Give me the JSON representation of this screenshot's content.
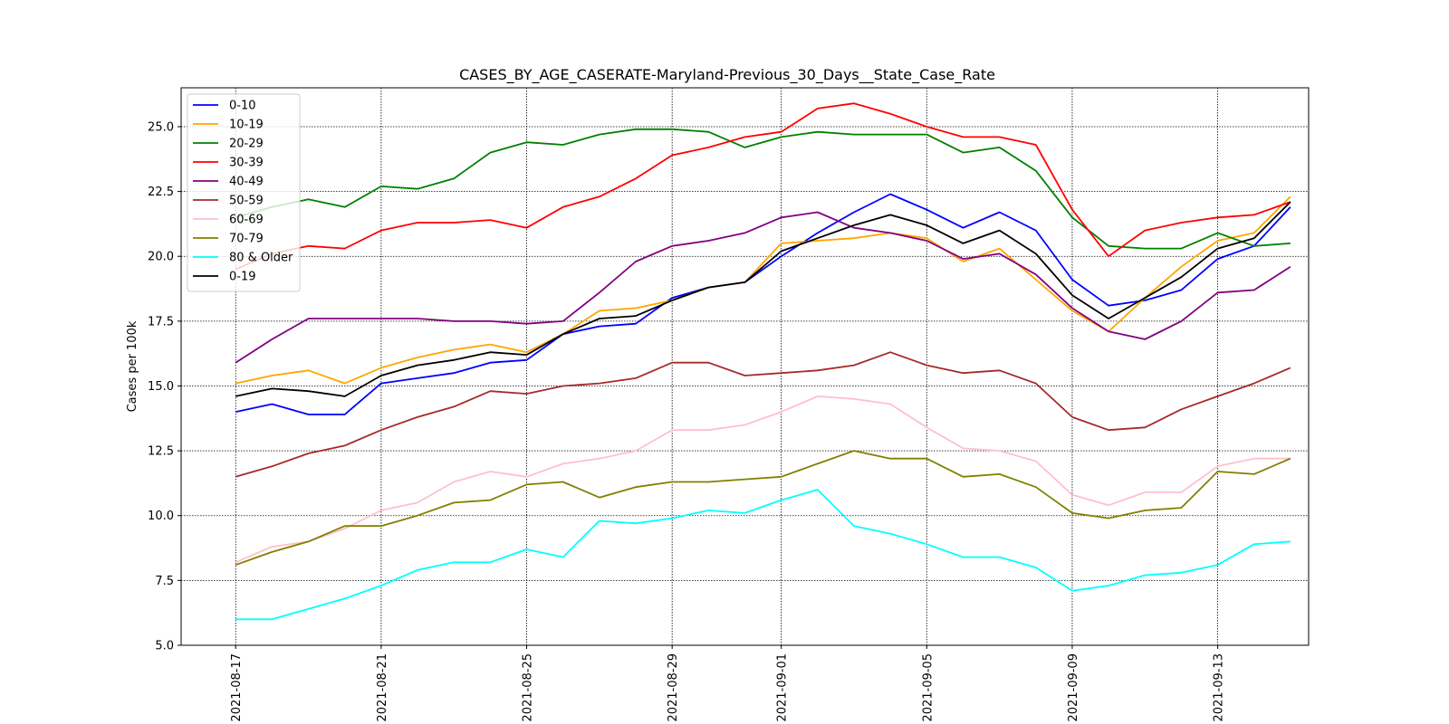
{
  "chart_data": {
    "type": "line",
    "title": "CASES_BY_AGE_CASERATE-Maryland-Previous_30_Days__State_Case_Rate",
    "xlabel": "",
    "ylabel": "Cases per 100k",
    "ylim": [
      5.0,
      26.5
    ],
    "xlim": [
      "2021-08-15T12:00",
      "2021-09-15T12:00"
    ],
    "yticks": [
      5.0,
      7.5,
      10.0,
      12.5,
      15.0,
      17.5,
      20.0,
      22.5,
      25.0
    ],
    "ytick_labels": [
      "5.0",
      "7.5",
      "10.0",
      "12.5",
      "15.0",
      "17.5",
      "20.0",
      "22.5",
      "25.0"
    ],
    "xticks": [
      "2021-08-17",
      "2021-08-21",
      "2021-08-25",
      "2021-08-29",
      "2021-09-01",
      "2021-09-05",
      "2021-09-09",
      "2021-09-13"
    ],
    "grid": true,
    "legend_position": "top-left",
    "x": [
      "2021-08-17",
      "2021-08-18",
      "2021-08-19",
      "2021-08-20",
      "2021-08-21",
      "2021-08-22",
      "2021-08-23",
      "2021-08-24",
      "2021-08-25",
      "2021-08-26",
      "2021-08-27",
      "2021-08-28",
      "2021-08-29",
      "2021-08-30",
      "2021-08-31",
      "2021-09-01",
      "2021-09-02",
      "2021-09-03",
      "2021-09-04",
      "2021-09-05",
      "2021-09-06",
      "2021-09-07",
      "2021-09-08",
      "2021-09-09",
      "2021-09-10",
      "2021-09-11",
      "2021-09-12",
      "2021-09-13",
      "2021-09-14",
      "2021-09-15"
    ],
    "series": [
      {
        "name": "0-10",
        "color": "#0000ff",
        "values": [
          14.0,
          14.3,
          13.9,
          13.9,
          15.1,
          15.3,
          15.5,
          15.9,
          16.0,
          17.0,
          17.3,
          17.4,
          18.4,
          18.8,
          19.0,
          20.0,
          20.9,
          21.7,
          22.4,
          21.8,
          21.1,
          21.7,
          21.0,
          19.1,
          18.1,
          18.3,
          18.7,
          19.9,
          20.4,
          21.9
        ]
      },
      {
        "name": "10-19",
        "color": "#ffa500",
        "values": [
          15.1,
          15.4,
          15.6,
          15.1,
          15.7,
          16.1,
          16.4,
          16.6,
          16.3,
          17.0,
          17.9,
          18.0,
          18.3,
          18.8,
          19.0,
          20.5,
          20.6,
          20.7,
          20.9,
          20.7,
          19.8,
          20.3,
          19.1,
          17.9,
          17.1,
          18.4,
          19.6,
          20.6,
          20.9,
          22.3
        ]
      },
      {
        "name": "20-29",
        "color": "#008000",
        "values": [
          21.5,
          21.9,
          22.2,
          21.9,
          22.7,
          22.6,
          23.0,
          24.0,
          24.4,
          24.3,
          24.7,
          24.9,
          24.9,
          24.8,
          24.2,
          24.6,
          24.8,
          24.7,
          24.7,
          24.7,
          24.0,
          24.2,
          23.3,
          21.5,
          20.4,
          20.3,
          20.3,
          20.9,
          20.4,
          20.5
        ]
      },
      {
        "name": "30-39",
        "color": "#ff0000",
        "values": [
          19.5,
          20.1,
          20.4,
          20.3,
          21.0,
          21.3,
          21.3,
          21.4,
          21.1,
          21.9,
          22.3,
          23.0,
          23.9,
          24.2,
          24.6,
          24.8,
          25.7,
          25.9,
          25.5,
          25.0,
          24.6,
          24.6,
          24.3,
          21.8,
          20.0,
          21.0,
          21.3,
          21.5,
          21.6,
          22.1
        ]
      },
      {
        "name": "40-49",
        "color": "#800080",
        "values": [
          15.9,
          16.8,
          17.6,
          17.6,
          17.6,
          17.6,
          17.5,
          17.5,
          17.4,
          17.5,
          18.6,
          19.8,
          20.4,
          20.6,
          20.9,
          21.5,
          21.7,
          21.1,
          20.9,
          20.6,
          19.9,
          20.1,
          19.3,
          18.0,
          17.1,
          16.8,
          17.5,
          18.6,
          18.7,
          19.6
        ]
      },
      {
        "name": "50-59",
        "color": "#a52a2a",
        "values": [
          11.5,
          11.9,
          12.4,
          12.7,
          13.3,
          13.8,
          14.2,
          14.8,
          14.7,
          15.0,
          15.1,
          15.3,
          15.9,
          15.9,
          15.4,
          15.5,
          15.6,
          15.8,
          16.3,
          15.8,
          15.5,
          15.6,
          15.1,
          13.8,
          13.3,
          13.4,
          14.1,
          14.6,
          15.1,
          15.7
        ]
      },
      {
        "name": "60-69",
        "color": "#ffc0cb",
        "values": [
          8.2,
          8.8,
          9.0,
          9.5,
          10.2,
          10.5,
          11.3,
          11.7,
          11.5,
          12.0,
          12.2,
          12.5,
          13.3,
          13.3,
          13.5,
          14.0,
          14.6,
          14.5,
          14.3,
          13.4,
          12.6,
          12.5,
          12.1,
          10.8,
          10.4,
          10.9,
          10.9,
          11.9,
          12.2,
          12.2
        ]
      },
      {
        "name": "70-79",
        "color": "#808000",
        "values": [
          8.1,
          8.6,
          9.0,
          9.6,
          9.6,
          10.0,
          10.5,
          10.6,
          11.2,
          11.3,
          10.7,
          11.1,
          11.3,
          11.3,
          11.4,
          11.5,
          12.0,
          12.5,
          12.2,
          12.2,
          11.5,
          11.6,
          11.1,
          10.1,
          9.9,
          10.2,
          10.3,
          11.7,
          11.6,
          12.2
        ]
      },
      {
        "name": "80 & Older",
        "color": "#00ffff",
        "values": [
          6.0,
          6.0,
          6.4,
          6.8,
          7.3,
          7.9,
          8.2,
          8.2,
          8.7,
          8.4,
          9.8,
          9.7,
          9.9,
          10.2,
          10.1,
          10.6,
          11.0,
          9.6,
          9.3,
          8.9,
          8.4,
          8.4,
          8.0,
          7.1,
          7.3,
          7.7,
          7.8,
          8.1,
          8.9,
          9.0
        ]
      },
      {
        "name": "0-19",
        "color": "#000000",
        "values": [
          14.6,
          14.9,
          14.8,
          14.6,
          15.4,
          15.8,
          16.0,
          16.3,
          16.2,
          17.0,
          17.6,
          17.7,
          18.3,
          18.8,
          19.0,
          20.2,
          20.7,
          21.2,
          21.6,
          21.2,
          20.5,
          21.0,
          20.1,
          18.5,
          17.6,
          18.4,
          19.2,
          20.3,
          20.7,
          22.1
        ]
      }
    ]
  }
}
